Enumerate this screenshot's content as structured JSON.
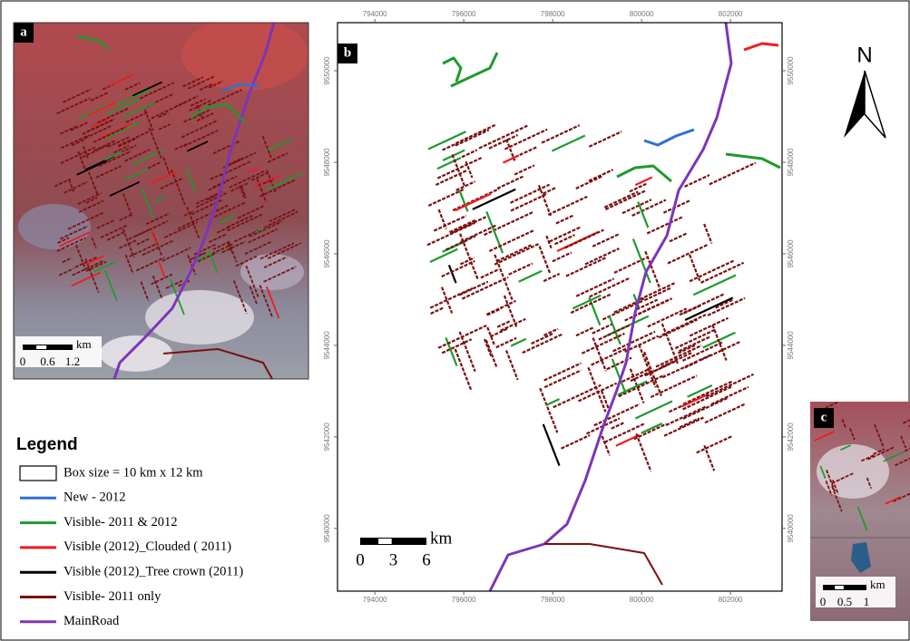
{
  "panels": [
    {
      "label": "a",
      "scale_bar": {
        "unit": "km",
        "ticks": [
          0,
          0.6,
          1.2
        ]
      }
    },
    {
      "label": "b",
      "scale_bar": {
        "unit": "km",
        "ticks": [
          0,
          3,
          6
        ]
      },
      "map": {
        "xlim": [
          793160,
          803160
        ],
        "ylim": [
          9538630,
          9551050
        ],
        "xticks": [
          794000,
          796000,
          798000,
          800000,
          802000
        ],
        "yticks": [
          9540000,
          9542000,
          9544000,
          9546000,
          9548000,
          9550000
        ]
      }
    },
    {
      "label": "c",
      "scale_bar": {
        "unit": "km",
        "ticks": [
          0,
          0.5,
          1
        ]
      }
    }
  ],
  "north_arrow": {
    "label": "N"
  },
  "legend": {
    "title": "Legend",
    "items": [
      {
        "label": "Box size = 10 km x 12 km"
      },
      {
        "label": "New  - 2012",
        "color": "#2f6fd4"
      },
      {
        "label": "Visible- 2011 & 2012",
        "color": "#1e9a2e"
      },
      {
        "label": "Visible (2012)_Clouded ( 2011)",
        "color": "#ee1c1c"
      },
      {
        "label": "Visible (2012)_Tree crown (2011)",
        "color": "#000000"
      },
      {
        "label": "Visible- 2011 only",
        "color": "#7a1010"
      },
      {
        "label": "MainRoad",
        "color": "#7d35b8"
      }
    ]
  }
}
